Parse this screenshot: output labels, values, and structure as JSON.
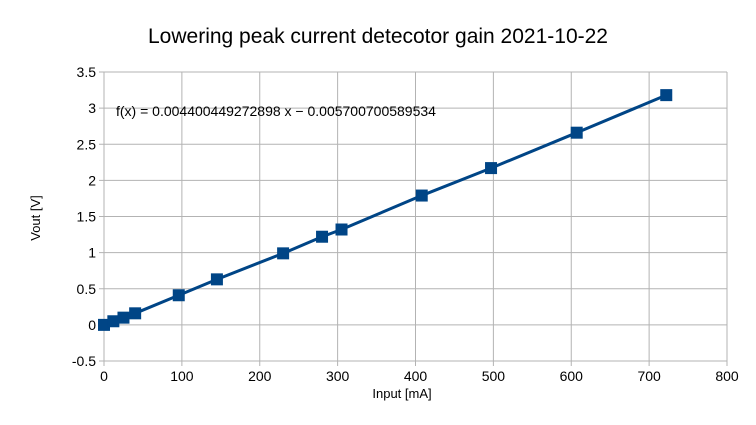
{
  "chart_data": {
    "type": "scatter",
    "title": "Lowering peak current detecotor gain 2021-10-22",
    "xlabel": "Input [mA]",
    "ylabel": "Vout [V]",
    "xlim": [
      0,
      800
    ],
    "ylim": [
      -0.5,
      3.5
    ],
    "xticks": [
      "0",
      "100",
      "200",
      "300",
      "400",
      "500",
      "600",
      "700",
      "800"
    ],
    "yticks": [
      "-0.5",
      "0",
      "0.5",
      "1",
      "1.5",
      "2",
      "2.5",
      "3",
      "3.5"
    ],
    "grid": true,
    "legend": "none",
    "trendline_equation": "f(x) = 0.004400449272898 x − 0.005700700589534",
    "trendline": {
      "slope": 0.004400449272898,
      "intercept": -0.005700700589534
    },
    "series": [
      {
        "color": "#004586",
        "x": [
          0,
          12,
          25,
          40,
          96,
          145,
          230,
          280,
          305,
          408,
          497,
          607,
          722
        ],
        "y": [
          0.0,
          0.05,
          0.1,
          0.16,
          0.41,
          0.63,
          0.99,
          1.22,
          1.32,
          1.79,
          2.17,
          2.66,
          3.18
        ]
      }
    ]
  }
}
